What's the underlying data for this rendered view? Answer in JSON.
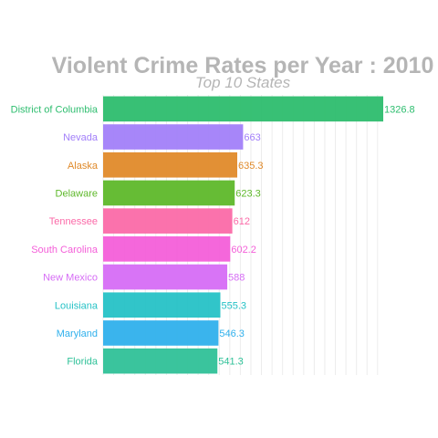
{
  "chart_data": {
    "type": "bar",
    "orientation": "horizontal",
    "title": "Violent Crime Rates per Year : 2010",
    "subtitle": "Top 10 States",
    "xlabel": "",
    "ylabel": "",
    "xlim": [
      0,
      1326.8
    ],
    "grid": true,
    "categories": [
      "District of Columbia",
      "Nevada",
      "Alaska",
      "Delaware",
      "Tennessee",
      "South Carolina",
      "New Mexico",
      "Louisiana",
      "Maryland",
      "Florida"
    ],
    "values": [
      1326.8,
      663,
      635.3,
      623.3,
      612,
      602.2,
      588,
      555.3,
      546.3,
      541.3
    ],
    "value_labels": [
      "1326.8",
      "663",
      "635.3",
      "623.3",
      "612",
      "602.2",
      "588",
      "555.3",
      "546.3",
      "541.3"
    ],
    "colors": [
      "#2dbd6e",
      "#a27ff9",
      "#e08a2a",
      "#5eb82a",
      "#fb6aa8",
      "#f45fd9",
      "#d66df5",
      "#26c2c6",
      "#2fb0ec",
      "#2fc198"
    ]
  }
}
